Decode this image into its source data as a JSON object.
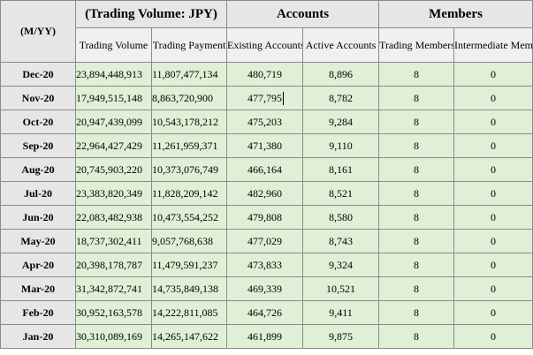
{
  "headers": {
    "period": "(M/YY)",
    "trading_volume_group": "(Trading Volume: JPY)",
    "accounts_group": "Accounts",
    "members_group": "Members",
    "trading_volume": "Trading Volume",
    "trading_payment": "Trading Payment",
    "existing_accounts": "Existing Accounts",
    "active_accounts": "Active Accounts",
    "trading_members": "Trading Members",
    "intermediate_members": "Intermediate Members"
  },
  "rows": [
    {
      "month": "Dec-20",
      "trading_volume": "23,894,448,913",
      "trading_payment": "11,807,477,134",
      "existing_accounts": "480,719",
      "active_accounts": "8,896",
      "trading_members": "8",
      "intermediate_members": "0"
    },
    {
      "month": "Nov-20",
      "trading_volume": "17,949,515,148",
      "trading_payment": "8,863,720,900",
      "existing_accounts": "477,795",
      "active_accounts": "8,782",
      "trading_members": "8",
      "intermediate_members": "0"
    },
    {
      "month": "Oct-20",
      "trading_volume": "20,947,439,099",
      "trading_payment": "10,543,178,212",
      "existing_accounts": "475,203",
      "active_accounts": "9,284",
      "trading_members": "8",
      "intermediate_members": "0"
    },
    {
      "month": "Sep-20",
      "trading_volume": "22,964,427,429",
      "trading_payment": "11,261,959,371",
      "existing_accounts": "471,380",
      "active_accounts": "9,110",
      "trading_members": "8",
      "intermediate_members": "0"
    },
    {
      "month": "Aug-20",
      "trading_volume": "20,745,903,220",
      "trading_payment": "10,373,076,749",
      "existing_accounts": "466,164",
      "active_accounts": "8,161",
      "trading_members": "8",
      "intermediate_members": "0"
    },
    {
      "month": "Jul-20",
      "trading_volume": "23,383,820,349",
      "trading_payment": "11,828,209,142",
      "existing_accounts": "482,960",
      "active_accounts": "8,521",
      "trading_members": "8",
      "intermediate_members": "0"
    },
    {
      "month": "Jun-20",
      "trading_volume": "22,083,482,938",
      "trading_payment": "10,473,554,252",
      "existing_accounts": "479,808",
      "active_accounts": "8,580",
      "trading_members": "8",
      "intermediate_members": "0"
    },
    {
      "month": "May-20",
      "trading_volume": "18,737,302,411",
      "trading_payment": "9,057,768,638",
      "existing_accounts": "477,029",
      "active_accounts": "8,743",
      "trading_members": "8",
      "intermediate_members": "0"
    },
    {
      "month": "Apr-20",
      "trading_volume": "20,398,178,787",
      "trading_payment": "11,479,591,237",
      "existing_accounts": "473,833",
      "active_accounts": "9,324",
      "trading_members": "8",
      "intermediate_members": "0"
    },
    {
      "month": "Mar-20",
      "trading_volume": "31,342,872,741",
      "trading_payment": "14,735,849,138",
      "existing_accounts": "469,339",
      "active_accounts": "10,521",
      "trading_members": "8",
      "intermediate_members": "0"
    },
    {
      "month": "Feb-20",
      "trading_volume": "30,952,163,578",
      "trading_payment": "14,222,811,085",
      "existing_accounts": "464,726",
      "active_accounts": "9,411",
      "trading_members": "8",
      "intermediate_members": "0"
    },
    {
      "month": "Jan-20",
      "trading_volume": "30,310,089,169",
      "trading_payment": "14,265,147,622",
      "existing_accounts": "461,899",
      "active_accounts": "9,875",
      "trading_members": "8",
      "intermediate_members": "0"
    }
  ],
  "colors": {
    "header_bg": "#e6e6e6",
    "data_bg": "#dff0d6",
    "border": "#8a8a8a"
  }
}
